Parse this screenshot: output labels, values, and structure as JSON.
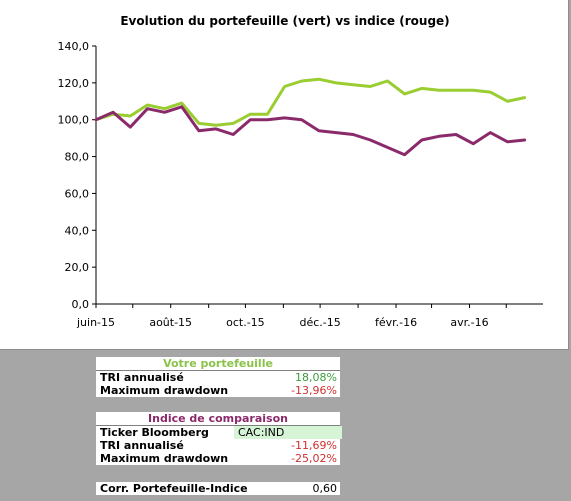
{
  "chart_data": {
    "type": "line",
    "title": "Evolution du portefeuille (vert) vs indice (rouge)",
    "xlabel": "",
    "ylabel": "",
    "ylim": [
      0,
      140
    ],
    "ytick_labels": [
      "0,0",
      "20,0",
      "40,0",
      "60,0",
      "80,0",
      "100,0",
      "120,0",
      "140,0"
    ],
    "xtick_labels": [
      "juin-15",
      "août-15",
      "oct.-15",
      "déc.-15",
      "févr.-16",
      "avr.-16"
    ],
    "x_dates": [
      "2015-06-01",
      "2015-06-15",
      "2015-06-29",
      "2015-07-13",
      "2015-07-27",
      "2015-08-10",
      "2015-08-24",
      "2015-09-07",
      "2015-09-21",
      "2015-10-05",
      "2015-10-19",
      "2015-11-02",
      "2015-11-16",
      "2015-11-30",
      "2015-12-14",
      "2015-12-28",
      "2016-01-11",
      "2016-01-25",
      "2016-02-08",
      "2016-02-22",
      "2016-03-07",
      "2016-03-21",
      "2016-04-04",
      "2016-04-18",
      "2016-05-02",
      "2016-05-16"
    ],
    "series": [
      {
        "name": "Portefeuille",
        "color": "#9acd32",
        "values": [
          100,
          103,
          102,
          108,
          106,
          109,
          98,
          97,
          98,
          103,
          103,
          118,
          121,
          122,
          120,
          119,
          118,
          121,
          114,
          117,
          116,
          116,
          116,
          115,
          110,
          112
        ]
      },
      {
        "name": "Indice",
        "color": "#8b2a6b",
        "values": [
          100,
          104,
          96,
          106,
          104,
          107,
          94,
          95,
          92,
          100,
          100,
          101,
          100,
          94,
          93,
          92,
          89,
          85,
          81,
          89,
          91,
          92,
          87,
          93,
          88,
          89
        ]
      }
    ],
    "grid": false,
    "legend": "none"
  },
  "portfolio_table": {
    "header": "Votre portefeuille",
    "rows": [
      {
        "label": "TRI annualisé",
        "value": "18,08%"
      },
      {
        "label": "Maximum drawdown",
        "value": "-13,96%"
      }
    ]
  },
  "index_table": {
    "header": "Indice de comparaison",
    "ticker_label": "Ticker Bloomberg",
    "ticker_value": "CAC:IND",
    "rows": [
      {
        "label": "TRI annualisé",
        "value": "-11,69%"
      },
      {
        "label": "Maximum drawdown",
        "value": "-25,02%"
      }
    ]
  },
  "correlation": {
    "label": "Corr. Portefeuille-Indice",
    "value": "0,60"
  }
}
